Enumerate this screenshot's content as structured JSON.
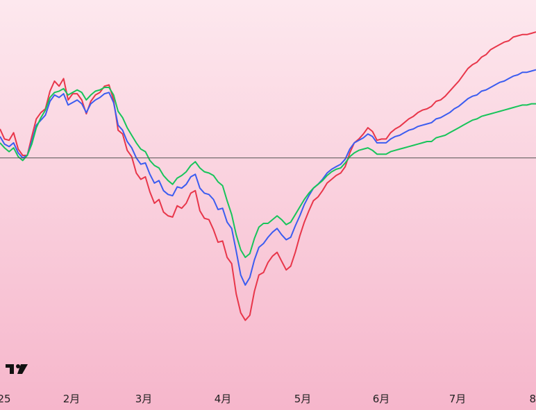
{
  "chart_data": {
    "type": "line",
    "title": "",
    "xlabel": "",
    "ylabel": "",
    "grid": false,
    "legend": "none",
    "background": {
      "top": "#fde8ee",
      "bottom": "#f6b6cb"
    },
    "baseline": {
      "value": 0,
      "color": "#555555"
    },
    "ylim": [
      -16,
      11
    ],
    "x_ticks": [
      "25",
      "2月",
      "3月",
      "4月",
      "5月",
      "6月",
      "7月",
      "8"
    ],
    "series": [
      {
        "color": "#e8364a",
        "values": [
          2.3,
          1.5,
          1.4,
          2.0,
          0.7,
          0.2,
          0.2,
          1.7,
          3.1,
          3.6,
          3.9,
          5.3,
          6.1,
          5.7,
          6.3,
          4.6,
          5.1,
          5.1,
          4.6,
          3.5,
          4.5,
          5.0,
          5.2,
          5.7,
          5.8,
          4.6,
          2.2,
          1.9,
          0.6,
          0.1,
          -1.2,
          -1.7,
          -1.5,
          -2.7,
          -3.6,
          -3.3,
          -4.3,
          -4.6,
          -4.7,
          -3.8,
          -4.0,
          -3.6,
          -2.8,
          -2.6,
          -4.2,
          -4.8,
          -4.9,
          -5.7,
          -6.7,
          -6.6,
          -7.9,
          -8.4,
          -10.8,
          -12.3,
          -12.9,
          -12.5,
          -10.6,
          -9.3,
          -9.1,
          -8.3,
          -7.8,
          -7.5,
          -8.2,
          -8.9,
          -8.6,
          -7.5,
          -6.2,
          -5.1,
          -4.2,
          -3.4,
          -3.1,
          -2.6,
          -2.0,
          -1.7,
          -1.4,
          -1.2,
          -0.7,
          0.4,
          1.2,
          1.5,
          1.9,
          2.4,
          2.1,
          1.4,
          1.5,
          1.5,
          2.0,
          2.3,
          2.5,
          2.8,
          3.1,
          3.3,
          3.6,
          3.8,
          3.9,
          4.1,
          4.5,
          4.6,
          4.9,
          5.3,
          5.7,
          6.1,
          6.6,
          7.1,
          7.4,
          7.6,
          8.0,
          8.2,
          8.6,
          8.8,
          9.0,
          9.2,
          9.3,
          9.6,
          9.7,
          9.8,
          9.8,
          9.9,
          10.0
        ]
      },
      {
        "color": "#3b5cf0",
        "values": [
          1.7,
          1.1,
          0.9,
          1.2,
          0.4,
          0.0,
          0.2,
          1.3,
          2.6,
          3.0,
          3.4,
          4.5,
          5.0,
          4.8,
          5.1,
          4.2,
          4.4,
          4.6,
          4.3,
          3.6,
          4.3,
          4.6,
          4.8,
          5.1,
          5.2,
          4.4,
          2.6,
          2.2,
          1.3,
          0.8,
          0.0,
          -0.5,
          -0.4,
          -1.3,
          -2.0,
          -1.8,
          -2.6,
          -2.9,
          -3.0,
          -2.3,
          -2.4,
          -2.1,
          -1.5,
          -1.3,
          -2.4,
          -2.8,
          -2.9,
          -3.3,
          -4.1,
          -4.0,
          -5.1,
          -5.6,
          -7.4,
          -9.3,
          -10.1,
          -9.5,
          -8.1,
          -7.1,
          -6.8,
          -6.3,
          -5.9,
          -5.6,
          -6.1,
          -6.5,
          -6.3,
          -5.4,
          -4.6,
          -3.7,
          -3.0,
          -2.4,
          -2.1,
          -1.7,
          -1.2,
          -0.9,
          -0.7,
          -0.5,
          -0.1,
          0.7,
          1.2,
          1.4,
          1.6,
          1.9,
          1.7,
          1.2,
          1.2,
          1.2,
          1.5,
          1.7,
          1.8,
          2.0,
          2.2,
          2.3,
          2.5,
          2.6,
          2.7,
          2.8,
          3.1,
          3.2,
          3.4,
          3.6,
          3.9,
          4.1,
          4.4,
          4.7,
          4.9,
          5.0,
          5.3,
          5.4,
          5.6,
          5.8,
          6.0,
          6.1,
          6.3,
          6.5,
          6.6,
          6.8,
          6.8,
          6.9,
          7.0
        ]
      },
      {
        "color": "#17c45a",
        "values": [
          1.2,
          0.8,
          0.5,
          0.8,
          0.1,
          -0.2,
          0.2,
          1.1,
          2.4,
          3.2,
          3.8,
          4.8,
          5.2,
          5.3,
          5.5,
          5.0,
          5.2,
          5.4,
          5.2,
          4.6,
          5.0,
          5.3,
          5.4,
          5.6,
          5.6,
          5.0,
          3.7,
          3.2,
          2.4,
          1.8,
          1.2,
          0.7,
          0.5,
          -0.2,
          -0.6,
          -0.8,
          -1.4,
          -1.8,
          -2.1,
          -1.6,
          -1.4,
          -1.1,
          -0.6,
          -0.3,
          -0.8,
          -1.1,
          -1.2,
          -1.4,
          -1.9,
          -2.2,
          -3.4,
          -4.5,
          -6.1,
          -7.3,
          -7.9,
          -7.6,
          -6.4,
          -5.5,
          -5.2,
          -5.2,
          -4.9,
          -4.6,
          -4.9,
          -5.3,
          -5.1,
          -4.5,
          -3.9,
          -3.3,
          -2.8,
          -2.4,
          -2.1,
          -1.8,
          -1.4,
          -1.1,
          -0.9,
          -0.8,
          -0.4,
          0.1,
          0.4,
          0.6,
          0.7,
          0.8,
          0.6,
          0.3,
          0.3,
          0.3,
          0.5,
          0.6,
          0.7,
          0.8,
          0.9,
          1.0,
          1.1,
          1.2,
          1.3,
          1.3,
          1.6,
          1.7,
          1.8,
          2.0,
          2.2,
          2.4,
          2.6,
          2.8,
          3.0,
          3.1,
          3.3,
          3.4,
          3.5,
          3.6,
          3.7,
          3.8,
          3.9,
          4.0,
          4.1,
          4.2,
          4.2,
          4.3,
          4.3
        ]
      }
    ]
  },
  "watermark": {
    "text": "TV"
  }
}
